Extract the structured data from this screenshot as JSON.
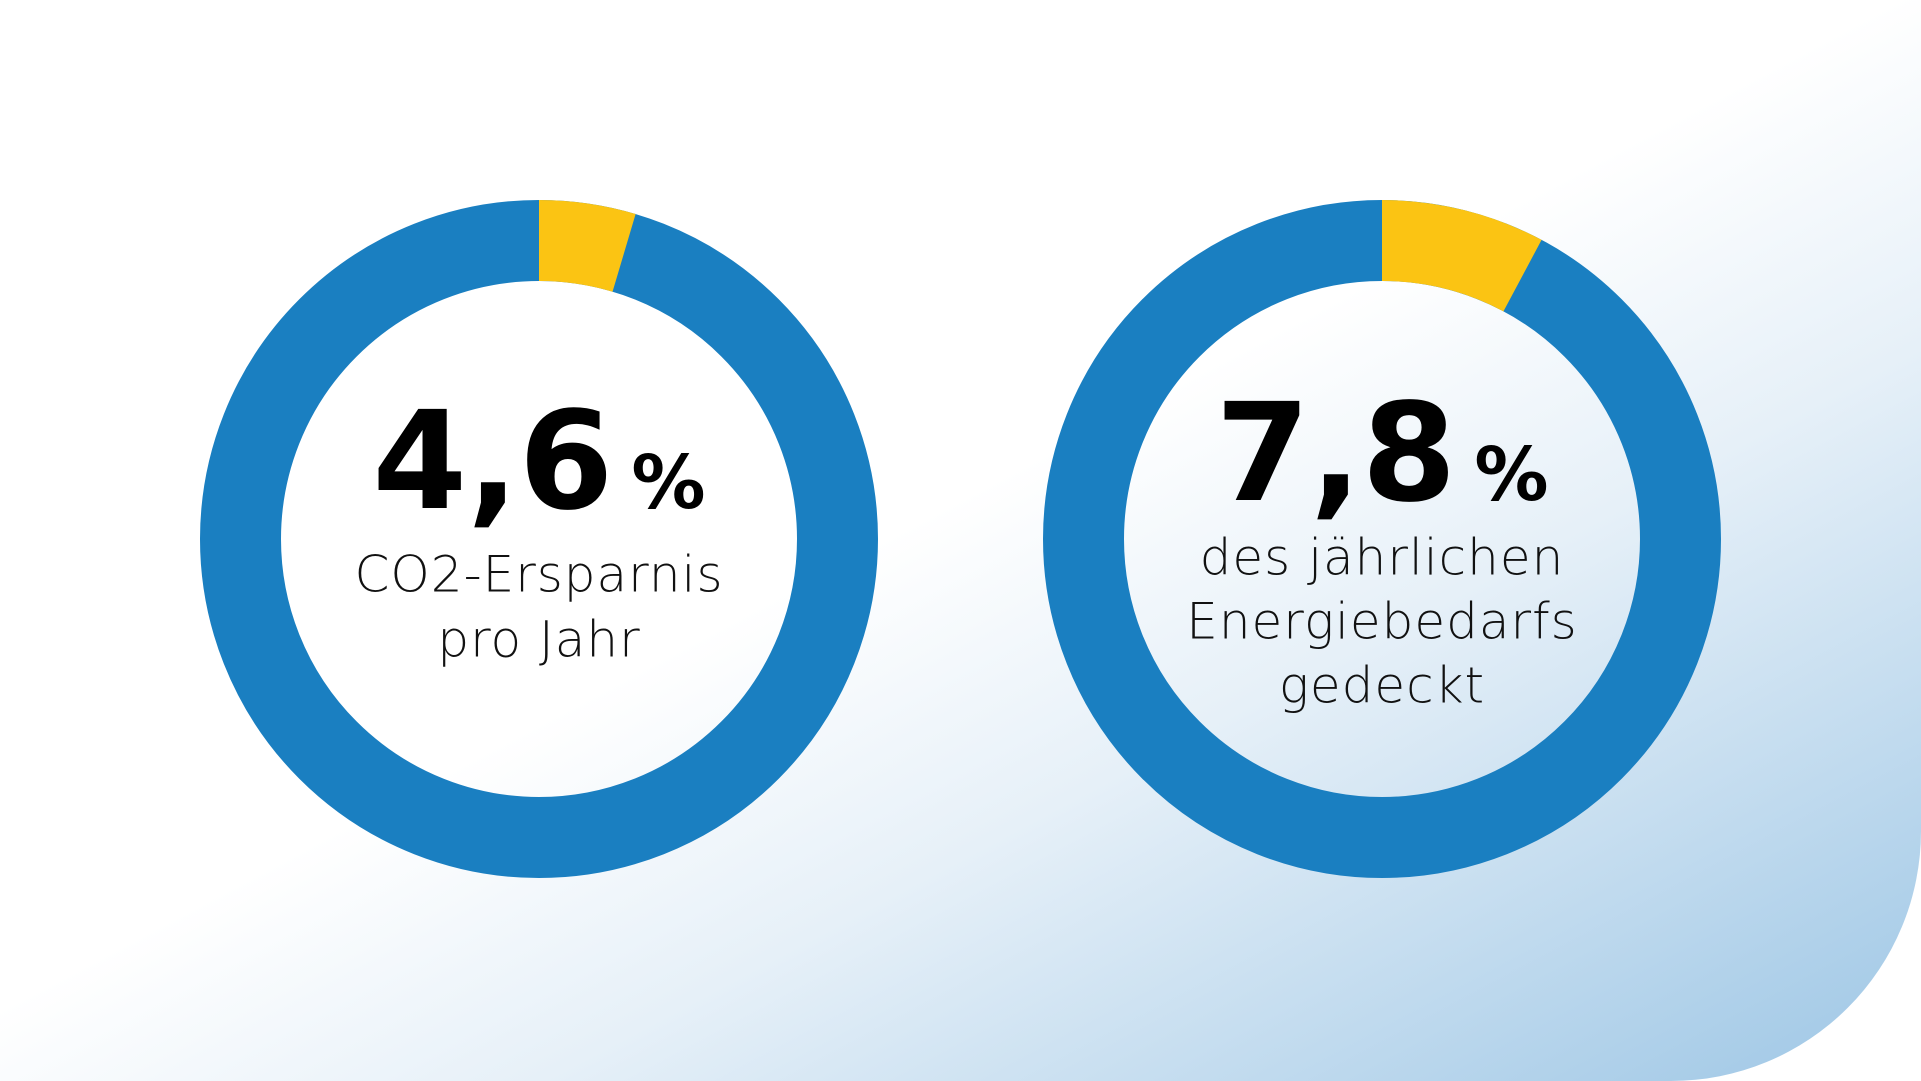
{
  "chart_data": [
    {
      "type": "donut",
      "values": [
        4.6
      ],
      "value_labels": [
        "4,6"
      ],
      "unit": "%",
      "color": "#fbc413",
      "ring_color": "#1a7fc1",
      "caption": [
        "CO2-Ersparnis",
        "pro Jahr"
      ]
    },
    {
      "type": "donut",
      "values": [
        7.8
      ],
      "value_labels": [
        "7,8"
      ],
      "unit": "%",
      "color": "#fbc413",
      "ring_color": "#1a7fc1",
      "caption": [
        "des jährlichen",
        "Energiebedarfs",
        "gedeckt"
      ]
    }
  ]
}
